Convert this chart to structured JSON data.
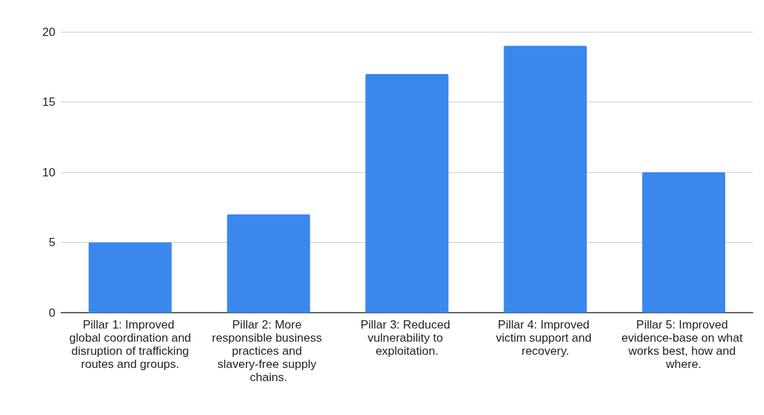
{
  "chart_data": {
    "type": "bar",
    "categories": [
      "Pillar 1: Improved global coordination and disruption of trafficking routes and groups.",
      "Pillar 2: More responsible business practices and slavery-free supply chains.",
      "Pillar 3: Reduced vulnerability to exploitation.",
      "Pillar 4: Improved victim support and recovery.",
      "Pillar 5: Improved evidence-base on what works best, how and where."
    ],
    "values": [
      5,
      7,
      17,
      19,
      10
    ],
    "color": "#3a88ee",
    "ylim": [
      0,
      20
    ],
    "yticks": [
      0,
      5,
      10,
      15,
      20
    ],
    "grid": "y"
  }
}
